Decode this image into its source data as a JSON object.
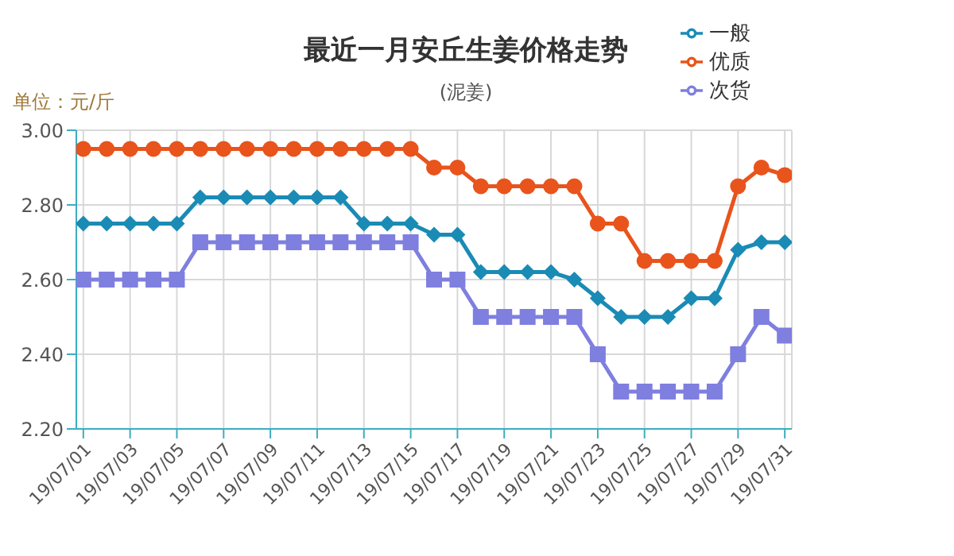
{
  "chart_data": {
    "type": "line",
    "title": "最近一月安丘生姜价格走势",
    "subtitle": "(泥姜)",
    "ylabel": "单位：元/斤",
    "categories": [
      "19/07/01",
      null,
      "19/07/03",
      null,
      "19/07/05",
      null,
      "19/07/07",
      null,
      "19/07/09",
      null,
      "19/07/11",
      null,
      "19/07/13",
      null,
      "19/07/15",
      null,
      "19/07/17",
      null,
      "19/07/19",
      null,
      "19/07/21",
      null,
      "19/07/23",
      null,
      "19/07/25",
      null,
      "19/07/27",
      null,
      "19/07/29",
      null,
      "19/07/31"
    ],
    "series": [
      {
        "name": "优质",
        "color": "#e8541c",
        "marker": "circle",
        "values": [
          2.95,
          2.95,
          2.95,
          2.95,
          2.95,
          2.95,
          2.95,
          2.95,
          2.95,
          2.95,
          2.95,
          2.95,
          2.95,
          2.95,
          2.95,
          2.9,
          2.9,
          2.85,
          2.85,
          2.85,
          2.85,
          2.85,
          2.75,
          2.75,
          2.65,
          2.65,
          2.65,
          2.65,
          2.85,
          2.9,
          2.88
        ]
      },
      {
        "name": "一般",
        "color": "#1a8bb5",
        "marker": "diamond",
        "values": [
          2.75,
          2.75,
          2.75,
          2.75,
          2.75,
          2.82,
          2.82,
          2.82,
          2.82,
          2.82,
          2.82,
          2.82,
          2.75,
          2.75,
          2.75,
          2.72,
          2.72,
          2.62,
          2.62,
          2.62,
          2.62,
          2.6,
          2.55,
          2.5,
          2.5,
          2.5,
          2.55,
          2.55,
          2.68,
          2.7,
          2.7
        ]
      },
      {
        "name": "次货",
        "color": "#7f7fdf",
        "marker": "square",
        "values": [
          2.6,
          2.6,
          2.6,
          2.6,
          2.6,
          2.7,
          2.7,
          2.7,
          2.7,
          2.7,
          2.7,
          2.7,
          2.7,
          2.7,
          2.7,
          2.6,
          2.6,
          2.5,
          2.5,
          2.5,
          2.5,
          2.5,
          2.4,
          2.3,
          2.3,
          2.3,
          2.3,
          2.3,
          2.4,
          2.5,
          2.45
        ]
      }
    ],
    "ylim": [
      2.2,
      3.0
    ],
    "yticks": [
      {
        "value": 2.2,
        "label": "2.20"
      },
      {
        "value": 2.4,
        "label": "2.40"
      },
      {
        "value": 2.6,
        "label": "2.60"
      },
      {
        "value": 2.8,
        "label": "2.80"
      },
      {
        "value": 3.0,
        "label": "3.00"
      }
    ],
    "grid": true,
    "legend": "top right"
  }
}
